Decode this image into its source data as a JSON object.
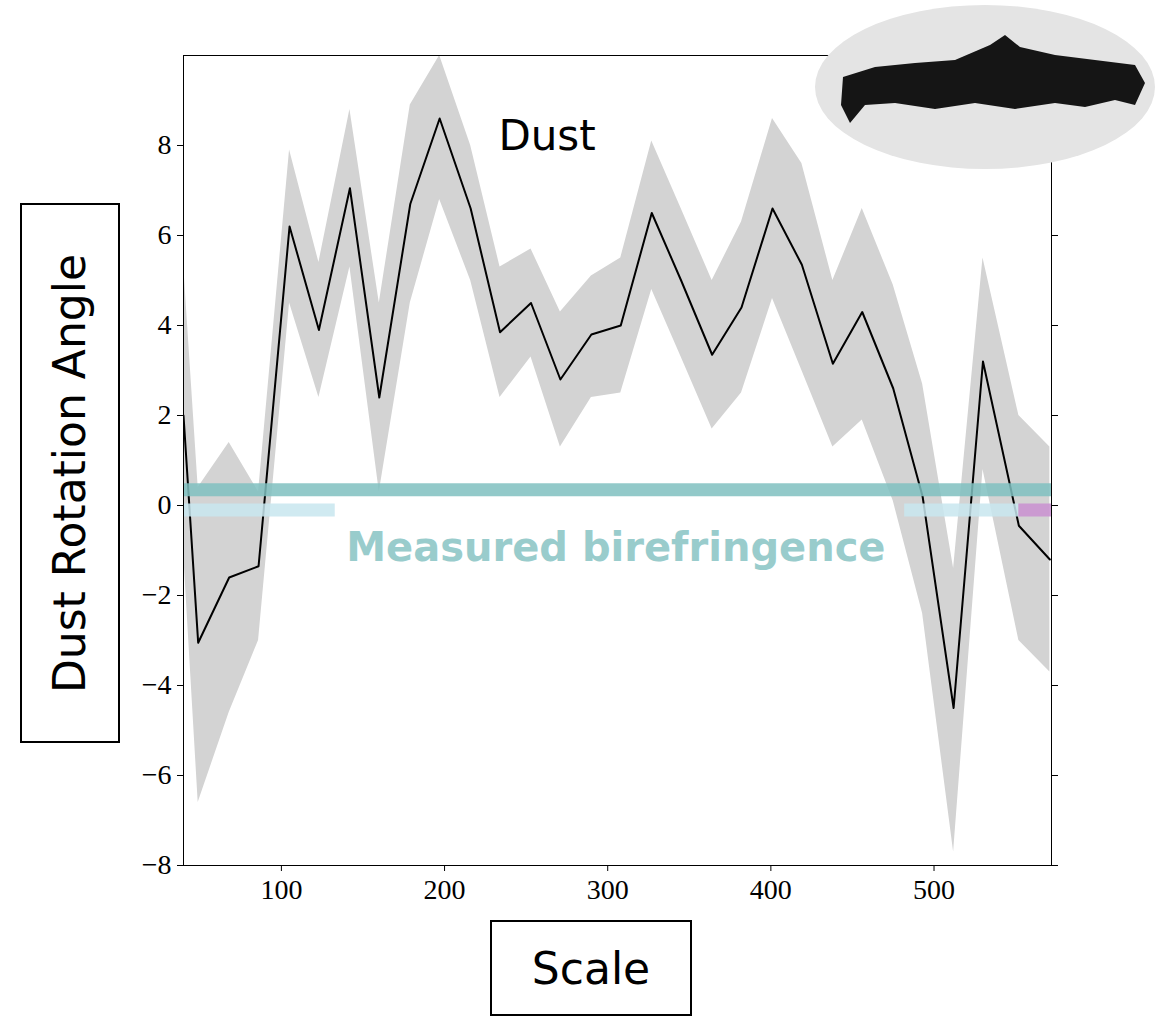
{
  "chart_data": {
    "type": "line",
    "x_label": "Scale",
    "y_label": "Dust Rotation Angle",
    "xlim": [
      40,
      572
    ],
    "ylim": [
      -8,
      10
    ],
    "xticks": [
      100,
      200,
      300,
      400,
      500
    ],
    "yticks": [
      -8,
      -6,
      -4,
      -2,
      0,
      2,
      4,
      6,
      8
    ],
    "grid": false,
    "series": [
      {
        "name": "Dust",
        "color": "#000000",
        "band_color": "#d3d3d3",
        "x": [
          40,
          49,
          68,
          86,
          105,
          123,
          142,
          160,
          179,
          197,
          216,
          234,
          253,
          271,
          290,
          308,
          327,
          345,
          364,
          382,
          401,
          419,
          438,
          456,
          475,
          493,
          512,
          530,
          552,
          571
        ],
        "values": [
          2.0,
          -3.05,
          -1.6,
          -1.35,
          6.2,
          3.9,
          7.05,
          2.4,
          6.7,
          8.6,
          6.6,
          3.85,
          4.5,
          2.8,
          3.8,
          4.0,
          6.5,
          5.0,
          3.35,
          4.4,
          6.6,
          5.35,
          3.15,
          4.3,
          2.6,
          0.2,
          -4.5,
          3.2,
          -0.45,
          -1.2
        ],
        "lower": [
          -1.0,
          -6.6,
          -4.6,
          -3.0,
          4.5,
          2.4,
          5.3,
          0.3,
          4.5,
          6.8,
          5.0,
          2.4,
          3.3,
          1.3,
          2.4,
          2.5,
          4.8,
          3.3,
          1.7,
          2.5,
          4.6,
          3.0,
          1.3,
          1.9,
          0.1,
          -2.4,
          -7.7,
          0.8,
          -3.0,
          -3.7
        ],
        "upper": [
          5.4,
          0.4,
          1.4,
          0.3,
          7.9,
          5.4,
          8.8,
          4.5,
          8.9,
          10.0,
          8.0,
          5.3,
          5.7,
          4.3,
          5.1,
          5.5,
          8.1,
          6.6,
          5.0,
          6.3,
          8.6,
          7.6,
          5.0,
          6.6,
          4.9,
          2.7,
          -1.4,
          5.5,
          2.0,
          1.3
        ]
      }
    ],
    "birefringence": [
      {
        "y": 0.35,
        "x": [
          40,
          572
        ],
        "color": "#7fbfbf"
      },
      {
        "y": -0.1,
        "x": [
          40,
          133
        ],
        "color": "#c8e6ee"
      },
      {
        "y": -0.1,
        "x": [
          482,
          552
        ],
        "color": "#c8e6ee"
      },
      {
        "y": -0.1,
        "x": [
          552,
          572
        ],
        "color": "#c98fd0"
      }
    ],
    "annotations": [
      {
        "text": "Dust",
        "x": 233,
        "y": 8.2,
        "color": "#000000"
      },
      {
        "text": "Measured birefringence",
        "x": 305,
        "y": -0.95,
        "color": "#99cccc"
      }
    ]
  }
}
